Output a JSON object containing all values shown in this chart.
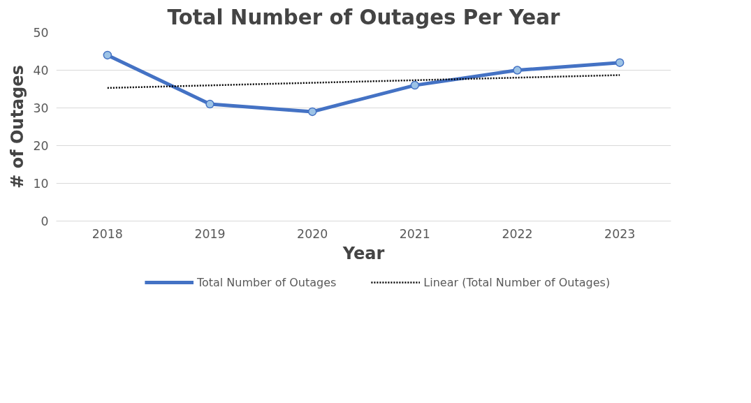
{
  "chart_data": {
    "type": "line",
    "title": "Total Number of Outages Per Year",
    "xlabel": "Year",
    "ylabel": "# of Outages",
    "x": [
      2018,
      2019,
      2020,
      2021,
      2022,
      2023
    ],
    "xlim": [
      2017.5,
      2023.5
    ],
    "xticks": [
      2018,
      2019,
      2020,
      2021,
      2022,
      2023
    ],
    "ylim": [
      0,
      50
    ],
    "yticks": [
      0,
      10,
      20,
      30,
      40,
      50
    ],
    "grid": "y",
    "legend": "bottom",
    "series": [
      {
        "name": "Total Number of Outages",
        "color": "#4472c4",
        "values": [
          44,
          31,
          29,
          36,
          40,
          42
        ],
        "marker": "circle",
        "line_style": "solid"
      },
      {
        "name": "Linear (Total Number of Outages)",
        "type": "line",
        "color": "#000000",
        "x": [
          2018,
          2023
        ],
        "values": [
          35.3,
          38.7
        ],
        "marker": "none",
        "line_style": "dotted"
      }
    ]
  }
}
